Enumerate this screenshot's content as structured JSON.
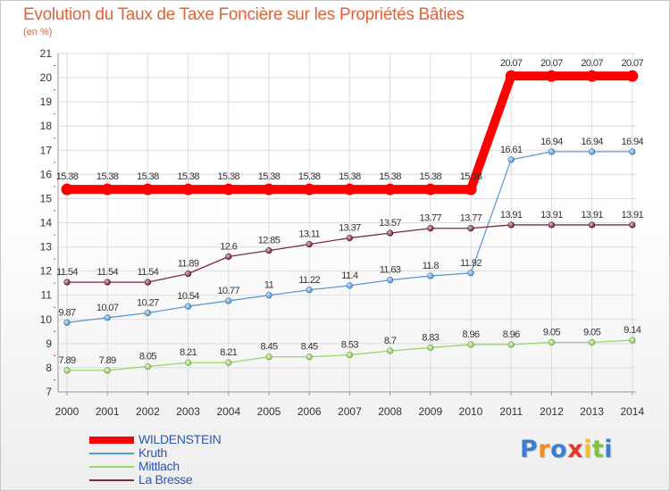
{
  "header": {
    "title": "Evolution du Taux de Taxe Foncière sur les Propriétés Bâties",
    "subtitle": "(en %)"
  },
  "logo": {
    "text": "Proxiti"
  },
  "chart_data": {
    "type": "line",
    "title": "Evolution du Taux de Taxe Foncière sur les Propriétés Bâties",
    "ylabel": "(en %)",
    "xlabel": "",
    "x": [
      "2000",
      "2001",
      "2002",
      "2003",
      "2004",
      "2005",
      "2006",
      "2007",
      "2008",
      "2009",
      "2010",
      "2011",
      "2012",
      "2013",
      "2014"
    ],
    "ylim": [
      7,
      21
    ],
    "yticks": [
      7,
      8,
      9,
      10,
      11,
      12,
      13,
      14,
      15,
      16,
      17,
      18,
      19,
      20,
      21
    ],
    "grid": true,
    "legend_position": "bottom-left",
    "series": [
      {
        "name": "WILDENSTEIN",
        "color": "#ff0000",
        "values": [
          15.38,
          15.38,
          15.38,
          15.38,
          15.38,
          15.38,
          15.38,
          15.38,
          15.38,
          15.38,
          15.38,
          20.07,
          20.07,
          20.07,
          20.07
        ],
        "labels": [
          "15.38",
          "15.38",
          "15.38",
          "15.38",
          "15.38",
          "15.38",
          "15.38",
          "15.38",
          "15.38",
          "15.38",
          "15.38",
          "20.07",
          "20.07",
          "20.07",
          "20.07"
        ]
      },
      {
        "name": "Kruth",
        "color": "#5b9bd5",
        "values": [
          9.87,
          10.07,
          10.27,
          10.54,
          10.77,
          11,
          11.22,
          11.4,
          11.63,
          11.8,
          11.92,
          16.61,
          16.94,
          16.94,
          16.94
        ],
        "labels": [
          "9.87",
          "10.07",
          "10.27",
          "10.54",
          "10.77",
          "11",
          "11.22",
          "11.4",
          "11.63",
          "11.8",
          "11.92",
          "16.61",
          "16.94",
          "16.94",
          "16.94"
        ]
      },
      {
        "name": "Mittlach",
        "color": "#9bd36b",
        "values": [
          7.89,
          7.89,
          8.05,
          8.21,
          8.21,
          8.45,
          8.45,
          8.53,
          8.7,
          8.83,
          8.96,
          8.96,
          9.05,
          9.05,
          9.14
        ],
        "labels": [
          "7.89",
          "7.89",
          "8.05",
          "8.21",
          "8.21",
          "8.45",
          "8.45",
          "8.53",
          "8.7",
          "8.83",
          "8.96",
          "8.96",
          "9.05",
          "9.05",
          "9.14"
        ]
      },
      {
        "name": "La Bresse",
        "color": "#7b2c3a",
        "values": [
          11.54,
          11.54,
          11.54,
          11.89,
          12.6,
          12.85,
          13.11,
          13.37,
          13.57,
          13.77,
          13.77,
          13.91,
          13.91,
          13.91,
          13.91
        ],
        "labels": [
          "11.54",
          "11.54",
          "11.54",
          "11.89",
          "12.6",
          "12.85",
          "13.11",
          "13.37",
          "13.57",
          "13.77",
          "13.77",
          "13.91",
          "13.91",
          "13.91",
          "13.91"
        ]
      }
    ]
  }
}
